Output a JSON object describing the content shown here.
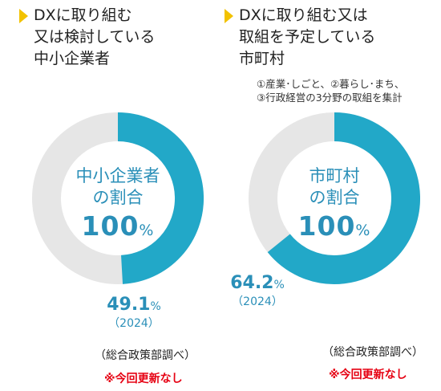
{
  "chart_data": [
    {
      "type": "pie",
      "title_lines": [
        "DXに取り組む",
        "又は検討している",
        "中小企業者"
      ],
      "center_label": {
        "line1": "中小企業者",
        "line2": "の割合",
        "total": "100",
        "total_unit": "%"
      },
      "value": 49.1,
      "value_text": "49.1",
      "value_unit": "%",
      "year_text": "（2024）",
      "source": "（総合政策部調べ）",
      "update_note": "※今回更新なし",
      "colors": {
        "value": "#22a8c8",
        "rest": "#e6e6e6"
      }
    },
    {
      "type": "pie",
      "title_lines": [
        "DXに取り組む又は",
        "取組を予定している",
        "市町村"
      ],
      "note_lines": [
        "①産業･しごと、②暮らし･まち、",
        "③行政経営の3分野の取組を集計"
      ],
      "center_label": {
        "line1": "市町村",
        "line2": "の割合",
        "total": "100",
        "total_unit": "%"
      },
      "value": 64.2,
      "value_text": "64.2",
      "value_unit": "%",
      "year_text": "（2024）",
      "source": "（総合政策部調べ）",
      "update_note": "※今回更新なし",
      "colors": {
        "value": "#22a8c8",
        "rest": "#e6e6e6"
      }
    }
  ]
}
